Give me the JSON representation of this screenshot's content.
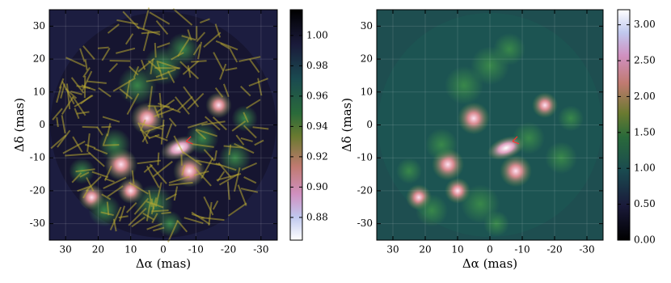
{
  "chart_data": [
    {
      "type": "heatmap",
      "xlabel": "Δα (mas)",
      "ylabel": "Δδ (mas)",
      "xlim": [
        35,
        -35
      ],
      "ylim": [
        -35,
        35
      ],
      "xticks": [
        30,
        20,
        10,
        0,
        -10,
        -20,
        -30
      ],
      "yticks": [
        -30,
        -20,
        -10,
        0,
        10,
        20,
        30
      ],
      "grid": true,
      "colormap": "cubehelix_r",
      "clim": [
        0.865,
        1.017
      ],
      "cticks": [
        {
          "value": 0.88,
          "label": "0.88"
        },
        {
          "value": 0.9,
          "label": "0.90"
        },
        {
          "value": 0.92,
          "label": "0.92"
        },
        {
          "value": 0.94,
          "label": "0.94"
        },
        {
          "value": 0.96,
          "label": "0.96"
        },
        {
          "value": 0.98,
          "label": "0.98"
        },
        {
          "value": 1,
          "label": "1.00"
        }
      ]
    },
    {
      "type": "heatmap",
      "xlabel": "Δα (mas)",
      "ylabel": "Δδ (mas)",
      "xlim": [
        35,
        -35
      ],
      "ylim": [
        -35,
        35
      ],
      "xticks": [
        30,
        20,
        10,
        0,
        -10,
        -20,
        -30
      ],
      "yticks": [
        -30,
        -20,
        -10,
        0,
        10,
        20,
        30
      ],
      "grid": true,
      "colormap": "cubehelix",
      "clim": [
        0,
        3.21
      ],
      "cticks": [
        {
          "value": 0,
          "label": "0.00"
        },
        {
          "value": 0.5,
          "label": "0.50"
        },
        {
          "value": 1,
          "label": "1.00"
        },
        {
          "value": 1.5,
          "label": "1.50"
        },
        {
          "value": 2,
          "label": "2.00"
        },
        {
          "value": 2.5,
          "label": "2.50"
        },
        {
          "value": 3,
          "label": "3.00"
        }
      ]
    }
  ]
}
